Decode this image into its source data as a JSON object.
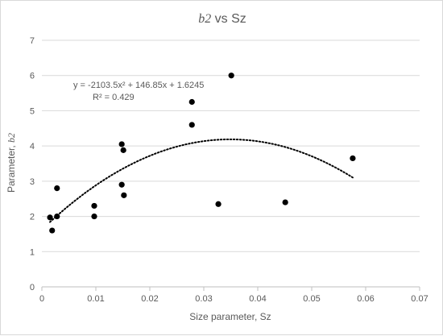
{
  "chart_data": {
    "type": "scatter",
    "title_var": "b2",
    "title_rest": " vs Sz",
    "xlabel": "Size parameter, Sz",
    "ylabel_prefix": "Parameter, ",
    "ylabel_var": "b2",
    "xlim": [
      0,
      0.07
    ],
    "ylim": [
      0,
      7
    ],
    "x_ticks": [
      0,
      0.01,
      0.02,
      0.03,
      0.04,
      0.05,
      0.06,
      0.07
    ],
    "x_tick_labels": [
      "0",
      "0.01",
      "0.02",
      "0.03",
      "0.04",
      "0.05",
      "0.06",
      "0.07"
    ],
    "y_ticks": [
      0,
      1,
      2,
      3,
      4,
      5,
      6,
      7
    ],
    "y_tick_labels": [
      "0",
      "1",
      "2",
      "3",
      "4",
      "5",
      "6",
      "7"
    ],
    "grid": "horizontal",
    "legend": "none",
    "points": [
      {
        "x": 0.0015,
        "y": 1.97
      },
      {
        "x": 0.0019,
        "y": 1.6
      },
      {
        "x": 0.0028,
        "y": 2.0
      },
      {
        "x": 0.0028,
        "y": 2.8
      },
      {
        "x": 0.0097,
        "y": 2.3
      },
      {
        "x": 0.0097,
        "y": 2.0
      },
      {
        "x": 0.0148,
        "y": 4.05
      },
      {
        "x": 0.0151,
        "y": 3.88
      },
      {
        "x": 0.0148,
        "y": 2.9
      },
      {
        "x": 0.0152,
        "y": 2.6
      },
      {
        "x": 0.0278,
        "y": 5.25
      },
      {
        "x": 0.0278,
        "y": 4.6
      },
      {
        "x": 0.0351,
        "y": 6.0
      },
      {
        "x": 0.0327,
        "y": 2.35
      },
      {
        "x": 0.0451,
        "y": 2.4
      },
      {
        "x": 0.0576,
        "y": 3.65
      }
    ],
    "trendline": {
      "type": "polynomial",
      "a": -2103.5,
      "b": 146.85,
      "c": 1.6245,
      "x_range": [
        0.0015,
        0.0576
      ],
      "equation": "y = -2103.5x² + 146.85x + 1.6245",
      "r2": "R² = 0.429"
    },
    "colors": {
      "points": "#000000",
      "trendline": "#000000",
      "grid": "#d9d9d9",
      "text": "#595959",
      "axis": "#bfbfbf"
    }
  }
}
